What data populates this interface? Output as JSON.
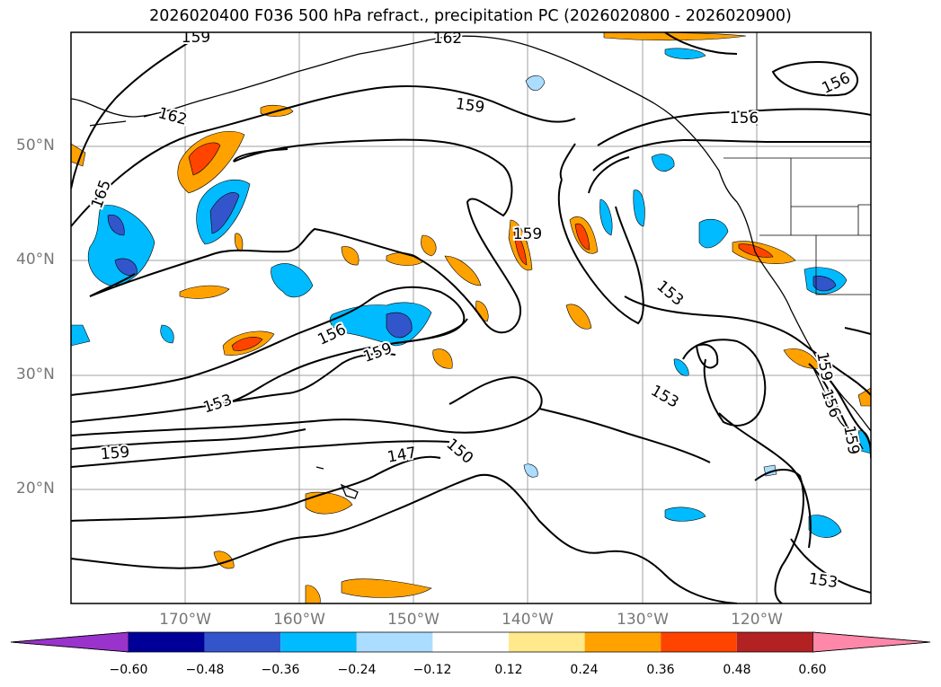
{
  "title": "2026020400 F036 500 hPa refract., precipitation PC (2026020800 - 2026020900)",
  "map": {
    "extent": {
      "lon_min": -180,
      "lon_max": -110,
      "lat_min": 10,
      "lat_max": 60
    },
    "lat_labels": [
      {
        "lat": 50,
        "text": "50°N"
      },
      {
        "lat": 40,
        "text": "40°N"
      },
      {
        "lat": 30,
        "text": "30°N"
      },
      {
        "lat": 20,
        "text": "20°N"
      }
    ],
    "lon_labels": [
      {
        "lon": -170,
        "text": "170°W"
      },
      {
        "lon": -160,
        "text": "160°W"
      },
      {
        "lon": -150,
        "text": "150°W"
      },
      {
        "lon": -140,
        "text": "140°W"
      },
      {
        "lon": -130,
        "text": "130°W"
      },
      {
        "lon": -120,
        "text": "120°W"
      }
    ],
    "contour_labels": [
      "159",
      "162",
      "159",
      "156",
      "156",
      "162",
      "165",
      "159",
      "153",
      "156",
      "159",
      "153",
      "153",
      "159",
      "147",
      "150",
      "159",
      "156",
      "159",
      "153"
    ],
    "grid_color": "#a0a0a0",
    "line_color": "#000000"
  },
  "colorbar": {
    "colors": [
      "#9933cc",
      "#000099",
      "#3355cc",
      "#00bbff",
      "#aaddff",
      "#ffffff",
      "#ffe98a",
      "#ffa200",
      "#ff4400",
      "#b22222",
      "#ff88aa"
    ],
    "ticks": [
      "−0.60",
      "−0.48",
      "−0.36",
      "−0.24",
      "−0.12",
      "0.12",
      "0.24",
      "0.36",
      "0.48",
      "0.60"
    ]
  }
}
